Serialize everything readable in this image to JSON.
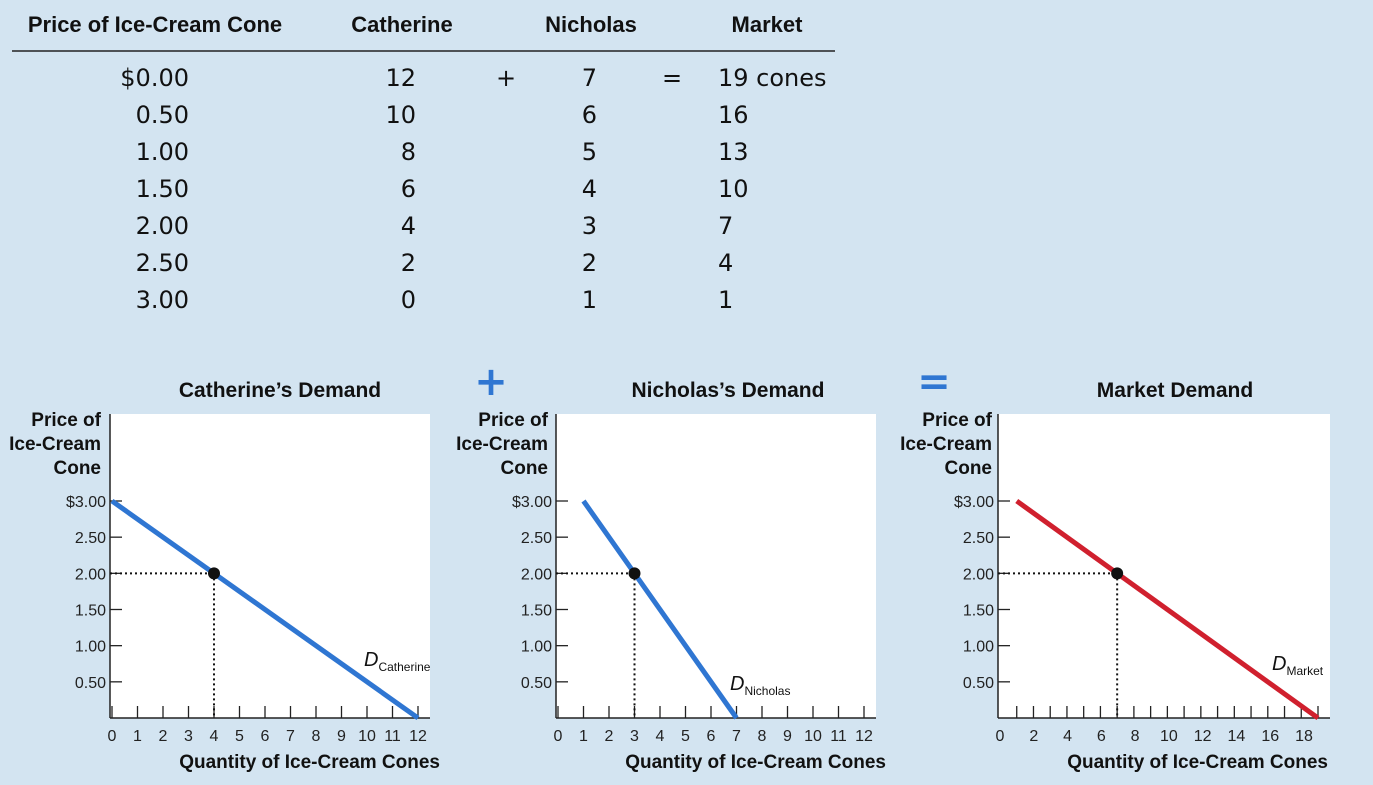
{
  "table": {
    "headers": [
      "Price of Ice-Cream Cone",
      "Catherine",
      "Nicholas",
      "Market"
    ],
    "rows": [
      {
        "price": "$0.00",
        "catherine": "12",
        "plus": "+",
        "nicholas": "7",
        "equals": "=",
        "market": "19 cones"
      },
      {
        "price": "0.50",
        "catherine": "10",
        "plus": "",
        "nicholas": "6",
        "equals": "",
        "market": "16"
      },
      {
        "price": "1.00",
        "catherine": "8",
        "plus": "",
        "nicholas": "5",
        "equals": "",
        "market": "13"
      },
      {
        "price": "1.50",
        "catherine": "6",
        "plus": "",
        "nicholas": "4",
        "equals": "",
        "market": "10"
      },
      {
        "price": "2.00",
        "catherine": "4",
        "plus": "",
        "nicholas": "3",
        "equals": "",
        "market": "7"
      },
      {
        "price": "2.50",
        "catherine": "2",
        "plus": "",
        "nicholas": "2",
        "equals": "",
        "market": "4"
      },
      {
        "price": "3.00",
        "catherine": "0",
        "plus": "",
        "nicholas": "1",
        "equals": "",
        "market": "1"
      }
    ]
  },
  "operators": {
    "plus": "+",
    "equals": "="
  },
  "colors": {
    "background": "#d3e4f1",
    "individual_curve": "#2f76d2",
    "market_curve": "#d0202e",
    "plot_bg": "#ffffff"
  },
  "chart_data": [
    {
      "type": "line",
      "title": "Catherine’s Demand",
      "ylabel": [
        "Price of",
        "Ice-Cream",
        "Cone"
      ],
      "xlabel": "Quantity of Ice-Cream Cones",
      "xlim": [
        0,
        12
      ],
      "ylim": [
        0,
        3
      ],
      "x_ticks": [
        0,
        1,
        2,
        3,
        4,
        5,
        6,
        7,
        8,
        9,
        10,
        11,
        12
      ],
      "x_tick_labels": [
        "0",
        "1",
        "2",
        "3",
        "4",
        "5",
        "6",
        "7",
        "8",
        "9",
        "10",
        "11",
        "12"
      ],
      "y_ticks": [
        3.0,
        2.5,
        2.0,
        1.5,
        1.0,
        0.5
      ],
      "y_tick_labels": [
        "$3.00",
        "2.50",
        "2.00",
        "1.50",
        "1.00",
        "0.50"
      ],
      "series": [
        {
          "label_main": "D",
          "label_sub": "Catherine",
          "x": [
            0,
            12
          ],
          "y": [
            3,
            0
          ]
        }
      ],
      "highlight": {
        "x": 4,
        "y": 2
      },
      "curve_color": "#2f76d2"
    },
    {
      "type": "line",
      "title": "Nicholas’s Demand",
      "ylabel": [
        "Price of",
        "Ice-Cream",
        "Cone"
      ],
      "xlabel": "Quantity of Ice-Cream Cones",
      "xlim": [
        0,
        12
      ],
      "ylim": [
        0,
        3
      ],
      "x_ticks": [
        0,
        1,
        2,
        3,
        4,
        5,
        6,
        7,
        8,
        9,
        10,
        11,
        12
      ],
      "x_tick_labels": [
        "0",
        "1",
        "2",
        "3",
        "4",
        "5",
        "6",
        "7",
        "8",
        "9",
        "10",
        "11",
        "12"
      ],
      "y_ticks": [
        3.0,
        2.5,
        2.0,
        1.5,
        1.0,
        0.5
      ],
      "y_tick_labels": [
        "$3.00",
        "2.50",
        "2.00",
        "1.50",
        "1.00",
        "0.50"
      ],
      "series": [
        {
          "label_main": "D",
          "label_sub": "Nicholas",
          "x": [
            1,
            7
          ],
          "y": [
            3,
            0
          ]
        }
      ],
      "highlight": {
        "x": 3,
        "y": 2
      },
      "curve_color": "#2f76d2"
    },
    {
      "type": "line",
      "title": "Market Demand",
      "ylabel": [
        "Price of",
        "Ice-Cream",
        "Cone"
      ],
      "xlabel": "Quantity of Ice-Cream Cones",
      "xlim": [
        0,
        19
      ],
      "ylim": [
        0,
        3
      ],
      "x_ticks": [
        1,
        2,
        3,
        4,
        5,
        6,
        7,
        8,
        9,
        10,
        11,
        12,
        13,
        14,
        15,
        16,
        17,
        18,
        19
      ],
      "x_tick_labels": [
        "0",
        "2",
        "4",
        "6",
        "8",
        "10",
        "12",
        "14",
        "16",
        "18"
      ],
      "x_tick_label_values": [
        0,
        2,
        4,
        6,
        8,
        10,
        12,
        14,
        16,
        18
      ],
      "y_ticks": [
        3.0,
        2.5,
        2.0,
        1.5,
        1.0,
        0.5
      ],
      "y_tick_labels": [
        "$3.00",
        "2.50",
        "2.00",
        "1.50",
        "1.00",
        "0.50"
      ],
      "series": [
        {
          "label_main": "D",
          "label_sub": "Market",
          "x": [
            1,
            19
          ],
          "y": [
            3,
            0
          ]
        }
      ],
      "highlight": {
        "x": 7,
        "y": 2
      },
      "curve_color": "#d0202e"
    }
  ]
}
